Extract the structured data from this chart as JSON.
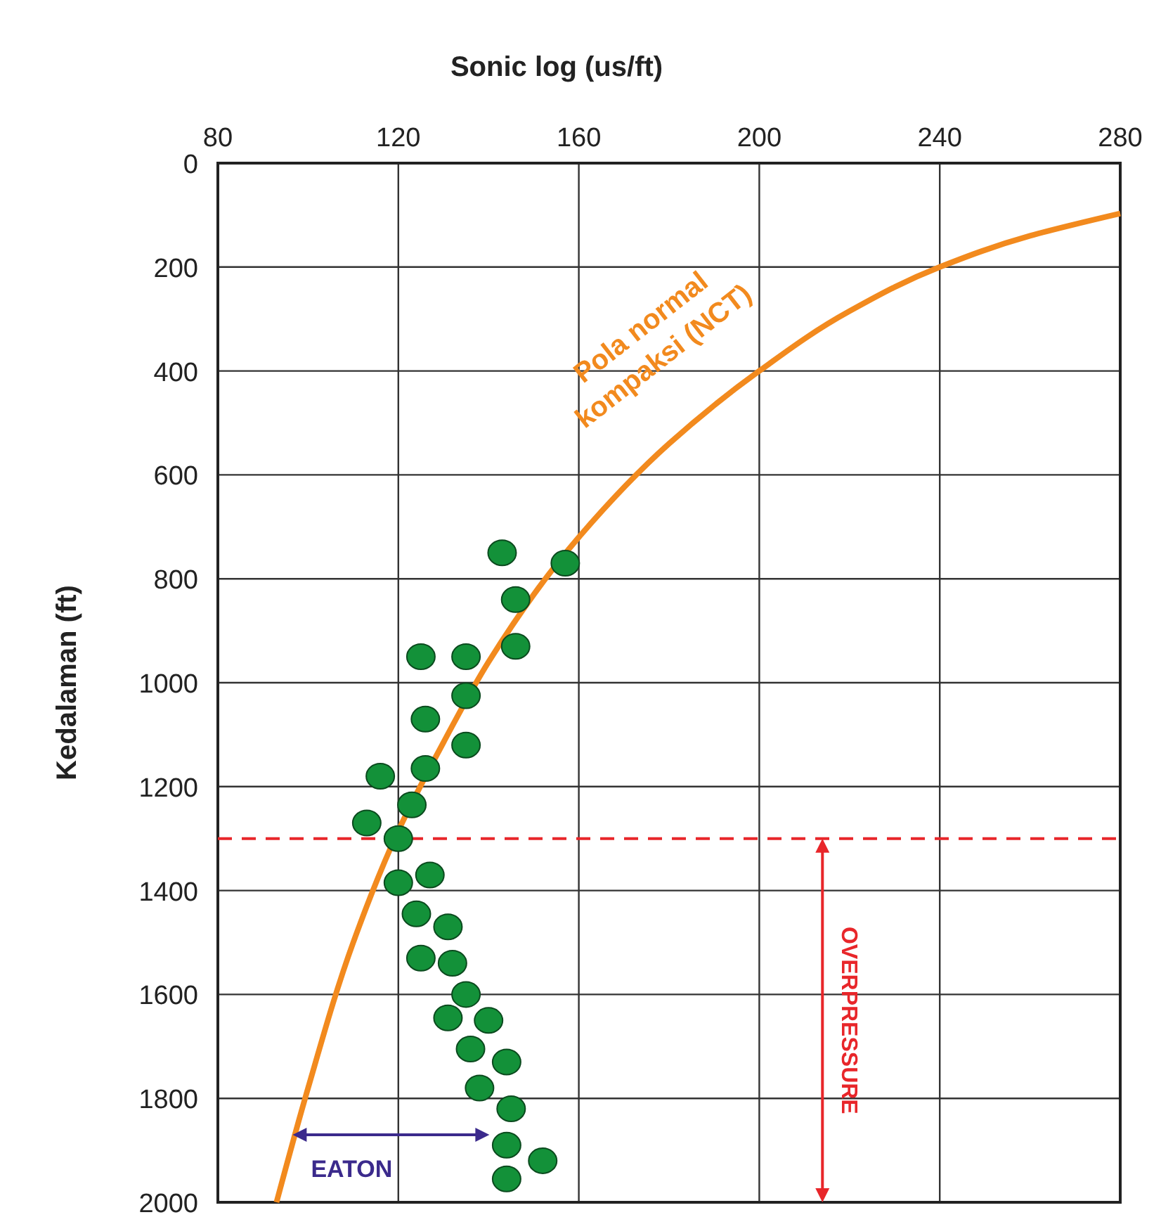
{
  "chart_data": {
    "type": "scatter",
    "xlabel": "Sonic log (us/ft)",
    "ylabel": "Kedalaman (ft)",
    "xlim": [
      80,
      280
    ],
    "xticks": [
      80,
      120,
      160,
      200,
      240,
      280
    ],
    "ylim": [
      2000,
      0
    ],
    "yticks": [
      0,
      200,
      400,
      600,
      800,
      1000,
      1200,
      1400,
      1600,
      1800,
      2000
    ],
    "grid": true,
    "series": [
      {
        "color": "#139139",
        "marker": "circle",
        "x": [
          143,
          157,
          146,
          125,
          135,
          146,
          135,
          126,
          135,
          126,
          116,
          123,
          113,
          120,
          127,
          120,
          124,
          131,
          125,
          132,
          135,
          140,
          131,
          136,
          144,
          138,
          145,
          144,
          152,
          144
        ],
        "values": [
          750,
          770,
          840,
          950,
          950,
          930,
          1025,
          1070,
          1120,
          1165,
          1180,
          1235,
          1270,
          1300,
          1370,
          1385,
          1445,
          1470,
          1530,
          1540,
          1600,
          1650,
          1645,
          1705,
          1730,
          1780,
          1820,
          1890,
          1920,
          1955
        ]
      },
      {
        "type": "line",
        "color": "#f28a1e",
        "marker": "none",
        "x": [
          280,
          260,
          240,
          220,
          200,
          180,
          160,
          140,
          130,
          120,
          110,
          100,
          93
        ],
        "values": [
          97,
          140,
          200,
          285,
          400,
          540,
          720,
          960,
          1115,
          1285,
          1500,
          1780,
          2000
        ]
      }
    ],
    "ref_lines": [
      {
        "axis": "y",
        "value": 1300,
        "color": "#e8262a",
        "line_style": "dashed"
      }
    ],
    "annotations": [
      "Pola normal kompaksi (NCT)",
      "EATON",
      "OVERPRESSURE"
    ]
  }
}
